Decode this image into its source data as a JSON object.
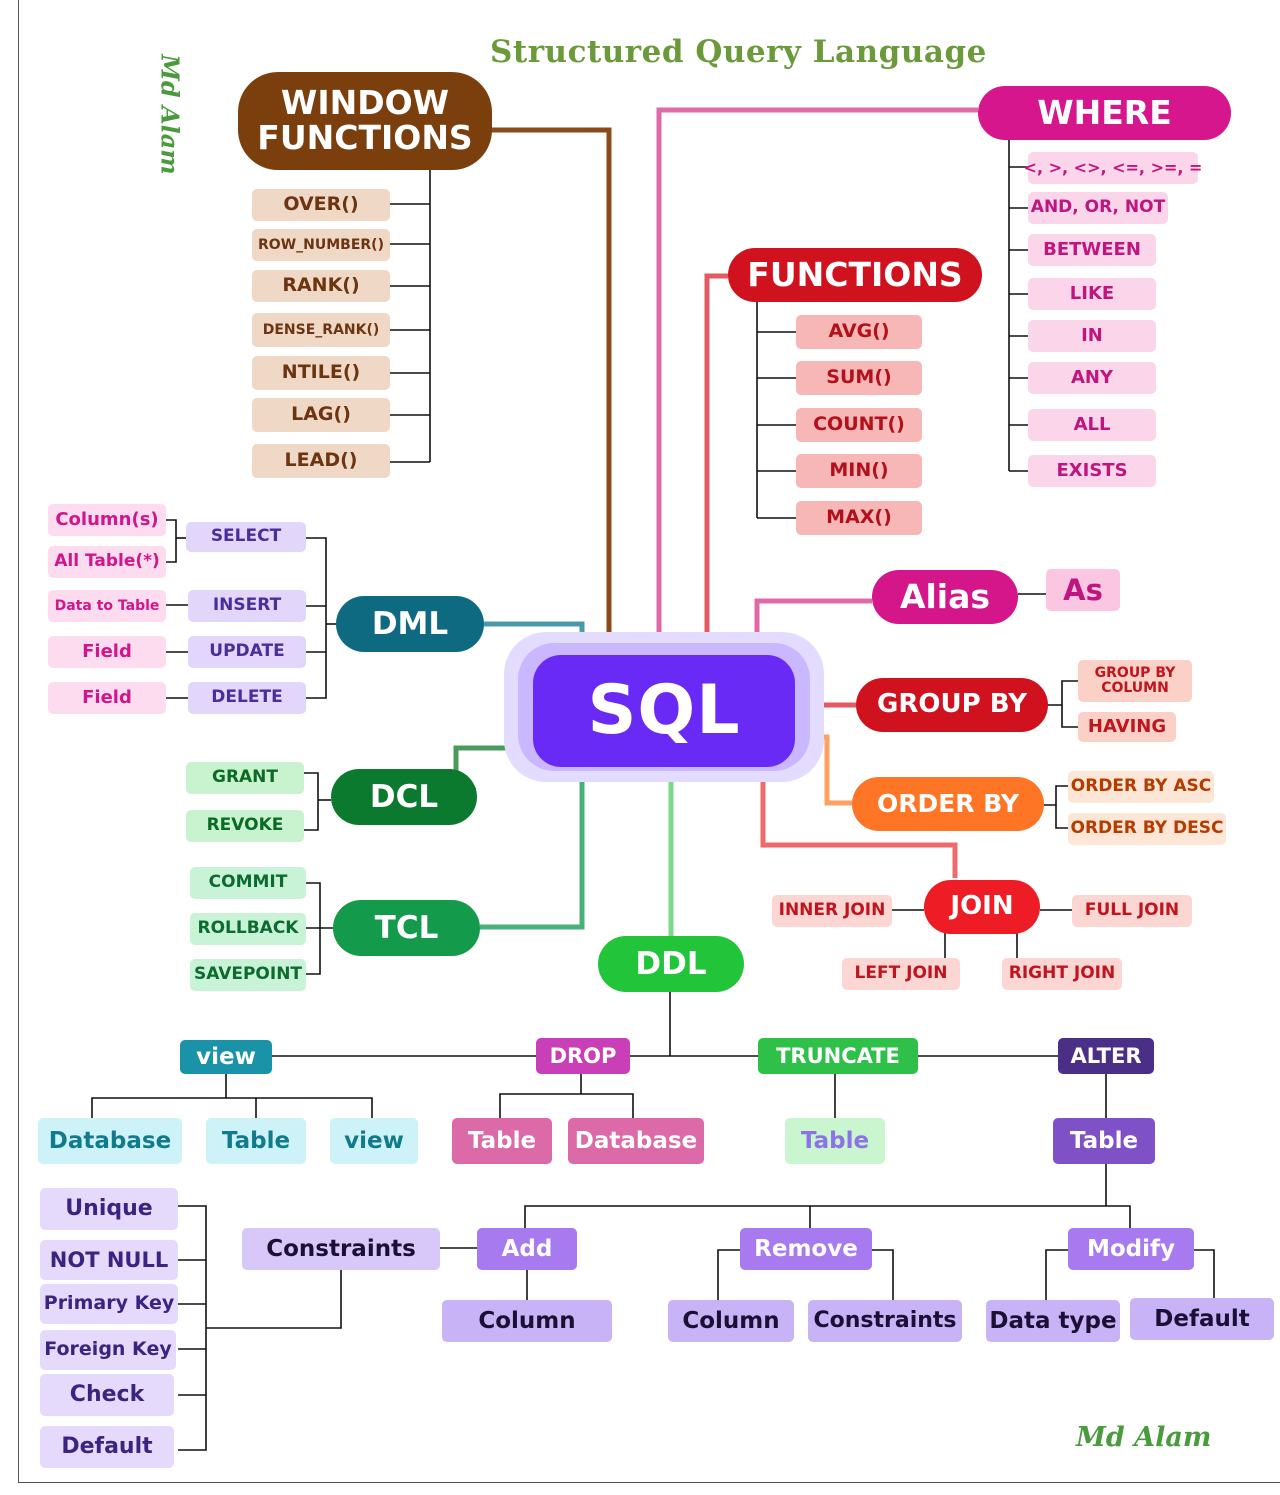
{
  "title": "Structured Query Language",
  "signature": "Md Alam",
  "root": "SQL",
  "window_functions": {
    "label": "WINDOW FUNCTIONS",
    "items": [
      "OVER()",
      "ROW_NUMBER()",
      "RANK()",
      "DENSE_RANK()",
      "NTILE()",
      "LAG()",
      "LEAD()"
    ]
  },
  "where": {
    "label": "WHERE",
    "items": [
      "<, >, <>, <=, >=, =",
      "AND, OR, NOT",
      "BETWEEN",
      "LIKE",
      "IN",
      "ANY",
      "ALL",
      "EXISTS"
    ]
  },
  "functions": {
    "label": "FUNCTIONS",
    "items": [
      "AVG()",
      "SUM()",
      "COUNT()",
      "MIN()",
      "MAX()"
    ]
  },
  "alias": {
    "label": "Alias",
    "item": "As"
  },
  "group_by": {
    "label": "GROUP BY",
    "items": [
      "GROUP BY COLUMN",
      "HAVING"
    ]
  },
  "order_by": {
    "label": "ORDER BY",
    "items": [
      "ORDER BY ASC",
      "ORDER BY DESC"
    ]
  },
  "join": {
    "label": "JOIN",
    "items": [
      "INNER JOIN",
      "FULL JOIN",
      "LEFT JOIN",
      "RIGHT JOIN"
    ]
  },
  "dml": {
    "label": "DML",
    "commands": [
      "SELECT",
      "INSERT",
      "UPDATE",
      "DELETE"
    ],
    "targets": [
      "Column(s)",
      "All Table(*)",
      "Data to Table",
      "Field",
      "Field"
    ]
  },
  "dcl": {
    "label": "DCL",
    "items": [
      "GRANT",
      "REVOKE"
    ]
  },
  "tcl": {
    "label": "TCL",
    "items": [
      "COMMIT",
      "ROLLBACK",
      "SAVEPOINT"
    ]
  },
  "ddl": {
    "label": "DDL",
    "view": {
      "label": "view",
      "items": [
        "Database",
        "Table",
        "view"
      ]
    },
    "drop": {
      "label": "DROP",
      "items": [
        "Table",
        "Database"
      ]
    },
    "truncate": {
      "label": "TRUNCATE",
      "items": [
        "Table"
      ]
    },
    "alter": {
      "label": "ALTER",
      "table": "Table",
      "add": {
        "label": "Add",
        "column": "Column"
      },
      "remove": {
        "label": "Remove",
        "items": [
          "Column",
          "Constraints"
        ]
      },
      "modify": {
        "label": "Modify",
        "items": [
          "Data type",
          "Default"
        ]
      },
      "constraints": {
        "label": "Constraints",
        "items": [
          "Unique",
          "NOT NULL",
          "Primary Key",
          "Foreign Key",
          "Check",
          "Default"
        ]
      }
    }
  },
  "colors": {
    "window": "#7b3f0e",
    "where": "#d6168c",
    "functions": "#d0121f",
    "alias": "#d4168a",
    "group_by": "#d0121f",
    "order_by": "#ff7526",
    "join": "#ee1c24",
    "dml": "#0e6a80",
    "dcl": "#0b7a2f",
    "tcl": "#139a4b",
    "ddl": "#22c43a",
    "sql": "#6a2af5",
    "view": "#1a93a8",
    "drop": "#c93fb8",
    "truncate": "#2fc04a",
    "alter": "#4b2f86"
  }
}
